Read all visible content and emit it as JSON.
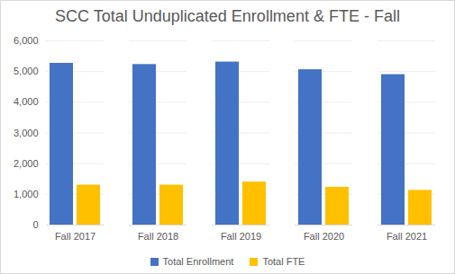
{
  "chart_data": {
    "type": "bar",
    "title": "SCC Total Unduplicated Enrollment & FTE - Fall",
    "categories": [
      "Fall 2017",
      "Fall 2018",
      "Fall 2019",
      "Fall 2020",
      "Fall 2021"
    ],
    "series": [
      {
        "name": "Total Enrollment",
        "color": "#4472c4",
        "values": [
          5270,
          5230,
          5310,
          5060,
          4900
        ]
      },
      {
        "name": "Total FTE",
        "color": "#ffc000",
        "values": [
          1300,
          1300,
          1400,
          1230,
          1130
        ]
      }
    ],
    "ylim": [
      0,
      6000
    ],
    "yticks": [
      0,
      {
        "value": 1000,
        "label": "1,000"
      },
      {
        "value": 2000,
        "label": "2,000"
      },
      {
        "value": 3000,
        "label": "3,000"
      },
      {
        "value": 4000,
        "label": "4,000"
      },
      {
        "value": 5000,
        "label": "5,000"
      },
      {
        "value": 6000,
        "label": "6,000"
      }
    ],
    "grid": true,
    "legend": "bottom"
  }
}
